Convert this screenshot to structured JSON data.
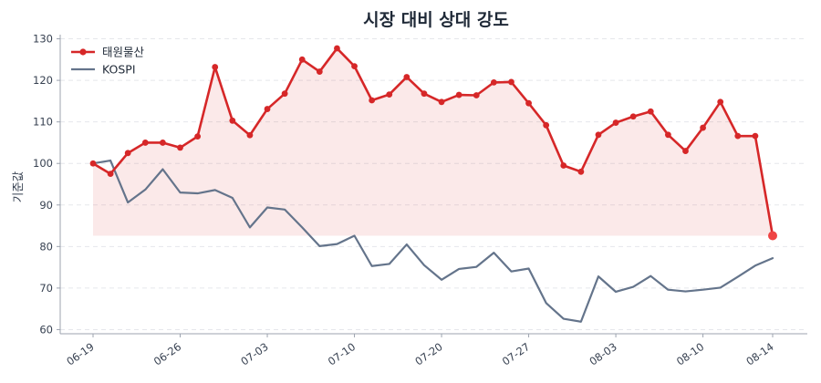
{
  "chart_data": {
    "type": "line",
    "title": "시장 대비 상대 강도",
    "xlabel": "",
    "ylabel": "기준값",
    "ylim": [
      59,
      131
    ],
    "yticks": [
      60,
      70,
      80,
      90,
      100,
      110,
      120,
      130
    ],
    "x_tick_labels": [
      "06-19",
      "06-26",
      "07-03",
      "07-10",
      "07-20",
      "07-27",
      "08-03",
      "08-10",
      "08-14"
    ],
    "x_tick_indices": [
      0,
      5,
      10,
      15,
      20,
      25,
      30,
      35,
      39
    ],
    "grid": true,
    "legend_position": "top-left",
    "fill_baseline": 82.6,
    "series": [
      {
        "name": "태원물산",
        "color": "#d62728",
        "markers": true,
        "values": [
          100.0,
          97.5,
          102.5,
          105.0,
          105.0,
          103.8,
          106.5,
          123.2,
          110.3,
          106.8,
          113.1,
          116.8,
          125.0,
          122.1,
          127.7,
          123.4,
          115.2,
          116.6,
          120.8,
          116.8,
          114.8,
          116.5,
          116.4,
          119.5,
          119.6,
          114.5,
          109.2,
          99.5,
          98.0,
          106.9,
          109.8,
          111.3,
          112.5,
          106.9,
          103.0,
          108.6,
          114.8,
          106.6,
          106.6,
          82.6
        ]
      },
      {
        "name": "KOSPI",
        "color": "#64748b",
        "markers": false,
        "values": [
          100.0,
          100.7,
          90.6,
          93.7,
          98.6,
          93.0,
          92.8,
          93.6,
          91.7,
          84.6,
          89.4,
          88.9,
          84.6,
          80.1,
          80.6,
          82.6,
          75.3,
          75.8,
          80.5,
          75.5,
          72.0,
          74.6,
          75.1,
          78.5,
          74.0,
          74.7,
          66.4,
          62.6,
          61.9,
          72.8,
          69.1,
          70.3,
          72.9,
          69.6,
          69.2,
          69.6,
          70.1,
          72.7,
          75.4,
          77.2
        ]
      }
    ]
  }
}
